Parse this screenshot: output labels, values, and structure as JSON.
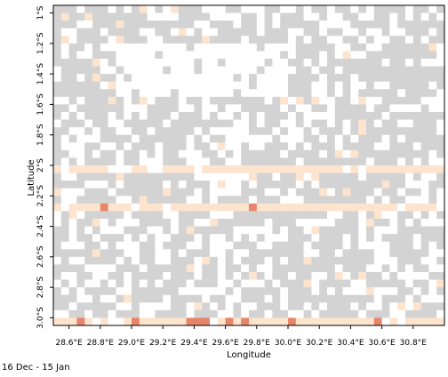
{
  "chart_data": {
    "type": "heatmap",
    "xlabel": "Longitude",
    "ylabel": "Latitude",
    "xlim": [
      28.5,
      31.0
    ],
    "ylim": [
      -3.05,
      -0.95
    ],
    "x_ticks": [
      28.6,
      28.8,
      29.0,
      29.2,
      29.4,
      29.6,
      29.8,
      30.0,
      30.2,
      30.4,
      30.6,
      30.8
    ],
    "x_tick_labels": [
      "28.6°E",
      "28.8°E",
      "29.0°E",
      "29.2°E",
      "29.4°E",
      "29.6°E",
      "29.8°E",
      "30.0°E",
      "30.2°E",
      "30.4°E",
      "30.6°E",
      "30.8°E"
    ],
    "y_ticks": [
      -1.0,
      -1.2,
      -1.4,
      -1.6,
      -1.8,
      -2.0,
      -2.2,
      -2.4,
      -2.6,
      -2.8,
      -3.0
    ],
    "y_tick_labels": [
      "1°S",
      "1.2°S",
      "1.4°S",
      "1.6°S",
      "1.8°S",
      "2°S",
      "2.2°S",
      "2.4°S",
      "2.6°S",
      "2.8°S",
      "3.0°S"
    ],
    "grid": false,
    "colors": {
      "no_data": "#d3d3d3",
      "zero": "#ffffff",
      "low": "#fde4ce",
      "medium": "#f7c09f",
      "high": "#e8846a"
    },
    "highlight_bands": [
      {
        "lat": -2.25,
        "level": "low"
      },
      {
        "lat": -2.0,
        "level": "low"
      },
      {
        "lat": -3.0,
        "level": "low"
      }
    ],
    "hot_cells": [
      {
        "lon": 28.85,
        "lat": -2.25,
        "level": "high"
      },
      {
        "lon": 29.8,
        "lat": -2.25,
        "level": "high"
      },
      {
        "lon": 28.7,
        "lat": -3.0,
        "level": "high"
      },
      {
        "lon": 29.05,
        "lat": -3.0,
        "level": "high"
      },
      {
        "lon": 29.4,
        "lat": -3.0,
        "level": "high"
      },
      {
        "lon": 29.45,
        "lat": -3.0,
        "level": "high"
      },
      {
        "lon": 29.5,
        "lat": -3.0,
        "level": "high"
      },
      {
        "lon": 29.65,
        "lat": -3.0,
        "level": "high"
      },
      {
        "lon": 29.75,
        "lat": -3.0,
        "level": "high"
      },
      {
        "lon": 30.05,
        "lat": -3.0,
        "level": "high"
      },
      {
        "lon": 30.6,
        "lat": -3.0,
        "level": "high"
      }
    ]
  },
  "footer": {
    "date_range": "16 Dec - 15 Jan"
  }
}
